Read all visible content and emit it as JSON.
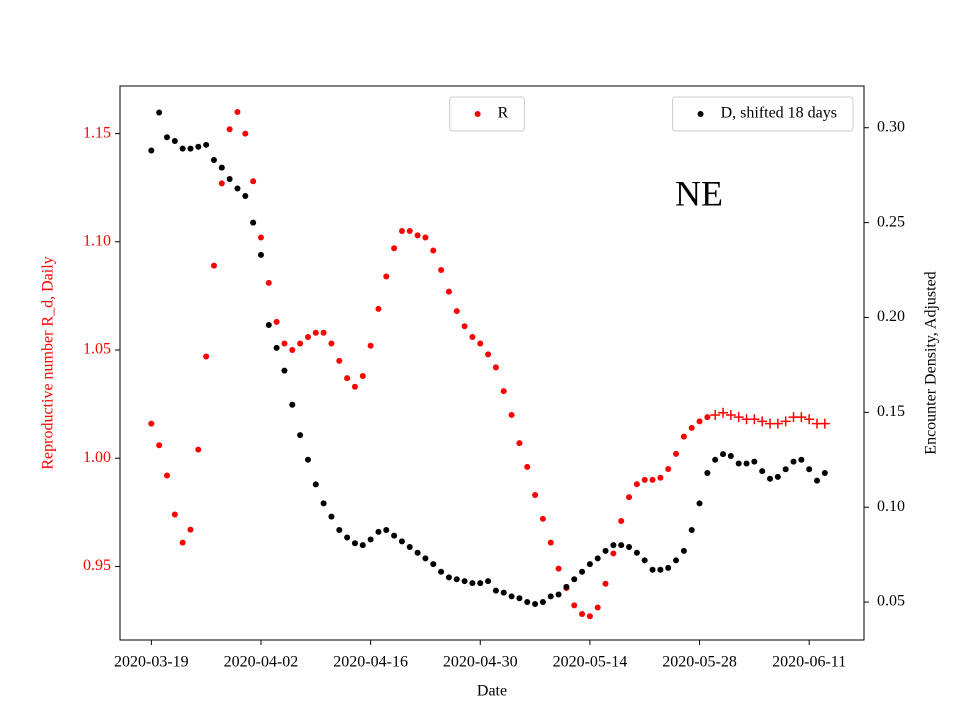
{
  "chart_data": {
    "type": "scatter",
    "title": "NE",
    "xlabel": "Date",
    "ylabel": "Reproductive number R_d, Daily",
    "y2label": "Encounter Density, Adjusted",
    "xlim": [
      "2020-03-15",
      "2020-06-18"
    ],
    "xticks": [
      "2020-03-19",
      "2020-04-02",
      "2020-04-16",
      "2020-04-30",
      "2020-05-14",
      "2020-05-28",
      "2020-06-11"
    ],
    "ylim": [
      0.916,
      1.172
    ],
    "yticks": [
      0.95,
      {
        "value": 1.0,
        "label": "1.00"
      },
      1.05,
      {
        "value": 1.1,
        "label": "1.10"
      },
      1.15
    ],
    "y2lim": [
      0.03,
      0.322
    ],
    "y2ticks": [
      0.05,
      {
        "value": 0.1,
        "label": "0.10"
      },
      0.15,
      {
        "value": 0.2,
        "label": "0.20"
      },
      0.25,
      {
        "value": 0.3,
        "label": "0.30"
      }
    ],
    "series": [
      {
        "name": "R",
        "color": "#ff0000",
        "marker": "o",
        "legend": "upper center",
        "x": [
          "2020-03-19",
          "2020-03-20",
          "2020-03-21",
          "2020-03-22",
          "2020-03-23",
          "2020-03-24",
          "2020-03-25",
          "2020-03-26",
          "2020-03-27",
          "2020-03-28",
          "2020-03-29",
          "2020-03-30",
          "2020-03-31",
          "2020-04-01",
          "2020-04-02",
          "2020-04-03",
          "2020-04-04",
          "2020-04-05",
          "2020-04-06",
          "2020-04-07",
          "2020-04-08",
          "2020-04-09",
          "2020-04-10",
          "2020-04-11",
          "2020-04-12",
          "2020-04-13",
          "2020-04-14",
          "2020-04-15",
          "2020-04-16",
          "2020-04-17",
          "2020-04-18",
          "2020-04-19",
          "2020-04-20",
          "2020-04-21",
          "2020-04-22",
          "2020-04-23",
          "2020-04-24",
          "2020-04-25",
          "2020-04-26",
          "2020-04-27",
          "2020-04-28",
          "2020-04-29",
          "2020-04-30",
          "2020-05-01",
          "2020-05-02",
          "2020-05-03",
          "2020-05-04",
          "2020-05-05",
          "2020-05-06",
          "2020-05-07",
          "2020-05-08",
          "2020-05-09",
          "2020-05-10",
          "2020-05-11",
          "2020-05-12",
          "2020-05-13",
          "2020-05-14",
          "2020-05-15",
          "2020-05-16",
          "2020-05-17",
          "2020-05-18",
          "2020-05-19",
          "2020-05-20",
          "2020-05-21",
          "2020-05-22",
          "2020-05-23",
          "2020-05-24",
          "2020-05-25",
          "2020-05-26",
          "2020-05-27",
          "2020-05-28",
          "2020-05-29"
        ],
        "values": [
          1.016,
          1.006,
          0.992,
          0.974,
          0.961,
          0.967,
          1.004,
          1.047,
          1.089,
          1.127,
          1.152,
          1.16,
          1.15,
          1.128,
          1.102,
          1.081,
          1.063,
          1.053,
          1.05,
          1.053,
          1.056,
          1.058,
          1.058,
          1.053,
          1.045,
          1.037,
          1.033,
          1.038,
          1.052,
          1.069,
          1.084,
          1.097,
          1.105,
          1.105,
          1.103,
          1.102,
          1.096,
          1.087,
          1.077,
          1.068,
          1.061,
          1.056,
          1.053,
          1.048,
          1.042,
          1.031,
          1.02,
          1.007,
          0.996,
          0.983,
          0.972,
          0.961,
          0.949,
          0.94,
          0.932,
          0.928,
          0.927,
          0.931,
          0.942,
          0.956,
          0.971,
          0.982,
          0.988,
          0.99,
          0.99,
          0.991,
          0.995,
          1.002,
          1.01,
          1.014,
          1.017,
          1.019
        ]
      },
      {
        "color": "#ff0000",
        "marker": "+",
        "x": [
          "2020-05-30",
          "2020-05-31",
          "2020-06-01",
          "2020-06-02",
          "2020-06-03",
          "2020-06-04",
          "2020-06-05",
          "2020-06-06",
          "2020-06-07",
          "2020-06-08",
          "2020-06-09",
          "2020-06-10",
          "2020-06-11",
          "2020-06-12",
          "2020-06-13"
        ],
        "values": [
          1.02,
          1.021,
          1.02,
          1.019,
          1.018,
          1.018,
          1.017,
          1.016,
          1.016,
          1.017,
          1.019,
          1.019,
          1.018,
          1.016,
          1.016
        ]
      },
      {
        "name": "D, shifted 18 days",
        "color": "#000000",
        "marker": "o",
        "axis": "y2",
        "legend": "upper right",
        "x": [
          "2020-03-19",
          "2020-03-20",
          "2020-03-21",
          "2020-03-22",
          "2020-03-23",
          "2020-03-24",
          "2020-03-25",
          "2020-03-26",
          "2020-03-27",
          "2020-03-28",
          "2020-03-29",
          "2020-03-30",
          "2020-03-31",
          "2020-04-01",
          "2020-04-02",
          "2020-04-03",
          "2020-04-04",
          "2020-04-05",
          "2020-04-06",
          "2020-04-07",
          "2020-04-08",
          "2020-04-09",
          "2020-04-10",
          "2020-04-11",
          "2020-04-12",
          "2020-04-13",
          "2020-04-14",
          "2020-04-15",
          "2020-04-16",
          "2020-04-17",
          "2020-04-18",
          "2020-04-19",
          "2020-04-20",
          "2020-04-21",
          "2020-04-22",
          "2020-04-23",
          "2020-04-24",
          "2020-04-25",
          "2020-04-26",
          "2020-04-27",
          "2020-04-28",
          "2020-04-29",
          "2020-04-30",
          "2020-05-01",
          "2020-05-02",
          "2020-05-03",
          "2020-05-04",
          "2020-05-05",
          "2020-05-06",
          "2020-05-07",
          "2020-05-08",
          "2020-05-09",
          "2020-05-10",
          "2020-05-11",
          "2020-05-12",
          "2020-05-13",
          "2020-05-14",
          "2020-05-15",
          "2020-05-16",
          "2020-05-17",
          "2020-05-18",
          "2020-05-19",
          "2020-05-20",
          "2020-05-21",
          "2020-05-22",
          "2020-05-23",
          "2020-05-24",
          "2020-05-25",
          "2020-05-26",
          "2020-05-27",
          "2020-05-28",
          "2020-05-29",
          "2020-05-30",
          "2020-05-31",
          "2020-06-01",
          "2020-06-02",
          "2020-06-03",
          "2020-06-04",
          "2020-06-05",
          "2020-06-06",
          "2020-06-07",
          "2020-06-08",
          "2020-06-09",
          "2020-06-10",
          "2020-06-11",
          "2020-06-12",
          "2020-06-13"
        ],
        "values": [
          0.288,
          0.308,
          0.295,
          0.293,
          0.289,
          0.289,
          0.29,
          0.291,
          0.283,
          0.279,
          0.273,
          0.268,
          0.264,
          0.25,
          0.233,
          0.196,
          0.184,
          0.172,
          0.154,
          0.138,
          0.125,
          0.112,
          0.102,
          0.095,
          0.088,
          0.084,
          0.081,
          0.08,
          0.083,
          0.087,
          0.088,
          0.085,
          0.082,
          0.079,
          0.076,
          0.073,
          0.07,
          0.066,
          0.063,
          0.062,
          0.061,
          0.06,
          0.06,
          0.061,
          0.056,
          0.055,
          0.053,
          0.052,
          0.05,
          0.049,
          0.05,
          0.053,
          0.054,
          0.058,
          0.062,
          0.066,
          0.07,
          0.073,
          0.077,
          0.08,
          0.08,
          0.079,
          0.076,
          0.072,
          0.067,
          0.067,
          0.068,
          0.072,
          0.077,
          0.088,
          0.102,
          0.118,
          0.125,
          0.128,
          0.127,
          0.123,
          0.123,
          0.124,
          0.119,
          0.115,
          0.116,
          0.12,
          0.124,
          0.125,
          0.12,
          0.114,
          0.118
        ]
      }
    ]
  }
}
